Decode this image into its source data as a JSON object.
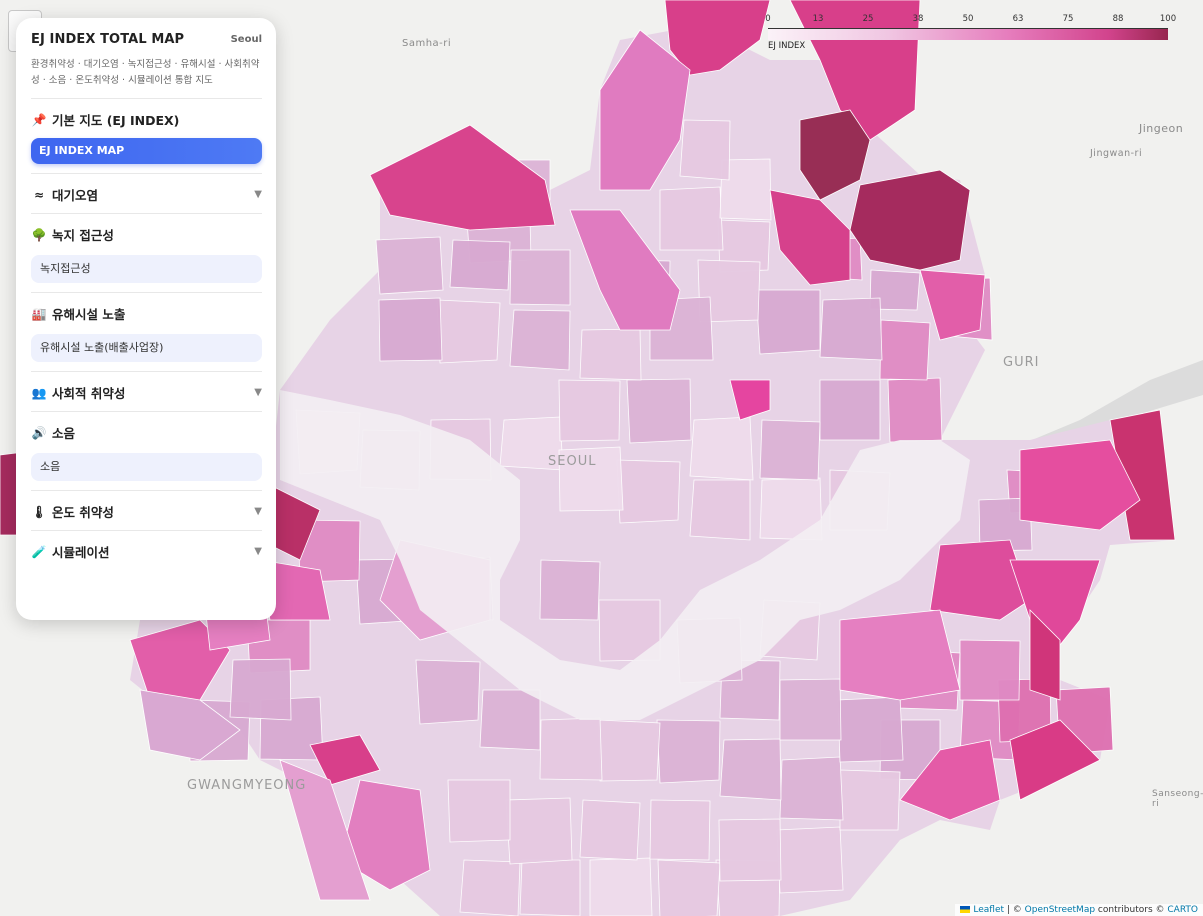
{
  "panel": {
    "title": "EJ INDEX TOTAL MAP",
    "city": "Seoul",
    "subtitle": "환경취약성 · 대기오염 · 녹지접근성 · 유해시설 · 사회취약성 · 소음 · 온도취약성 · 시뮬레이션 통합 지도",
    "sections": [
      {
        "icon": "📌",
        "icon_name": "pushpin-icon",
        "label": "기본 지도 (EJ INDEX)",
        "button": "EJ INDEX MAP",
        "button_style": "primary",
        "collapsible": false
      },
      {
        "icon": "≈",
        "icon_name": "wind-icon",
        "label": "대기오염",
        "collapsible": true
      },
      {
        "icon": "🌳",
        "icon_name": "tree-icon",
        "label": "녹지 접근성",
        "button": "녹지접근성",
        "button_style": "sub",
        "collapsible": false
      },
      {
        "icon": "🏭",
        "icon_name": "factory-icon",
        "label": "유해시설 노출",
        "button": "유해시설 노출(배출사업장)",
        "button_style": "sub",
        "collapsible": false
      },
      {
        "icon": "👥",
        "icon_name": "people-icon",
        "label": "사회적 취약성",
        "collapsible": true
      },
      {
        "icon": "🔊",
        "icon_name": "speaker-icon",
        "label": "소음",
        "button": "소음",
        "button_style": "sub",
        "collapsible": false
      },
      {
        "icon": "🌡",
        "icon_name": "thermometer-icon",
        "label": "온도 취약성",
        "collapsible": true
      },
      {
        "icon": "🧪",
        "icon_name": "test-tube-icon",
        "label": "시뮬레이션",
        "collapsible": true
      }
    ],
    "chevron": "▼"
  },
  "legend": {
    "ticks": [
      "0",
      "13",
      "25",
      "38",
      "50",
      "63",
      "75",
      "88",
      "100"
    ],
    "label": "EJ INDEX",
    "colors": [
      "#fbf2f8",
      "#f0c6e2",
      "#e67dbd",
      "#d2448d",
      "#98264f"
    ]
  },
  "map_labels": [
    "SEOUL",
    "GURI",
    "GWANGMYEONG",
    "Samha-ri",
    "Jingeon",
    "Jingwan-ri",
    "Sanseong-ri"
  ],
  "attribution": {
    "leaflet": "Leaflet",
    "sep": " | © ",
    "osm": "OpenStreetMap",
    "contrib": " contributors © ",
    "carto": "CARTO"
  }
}
